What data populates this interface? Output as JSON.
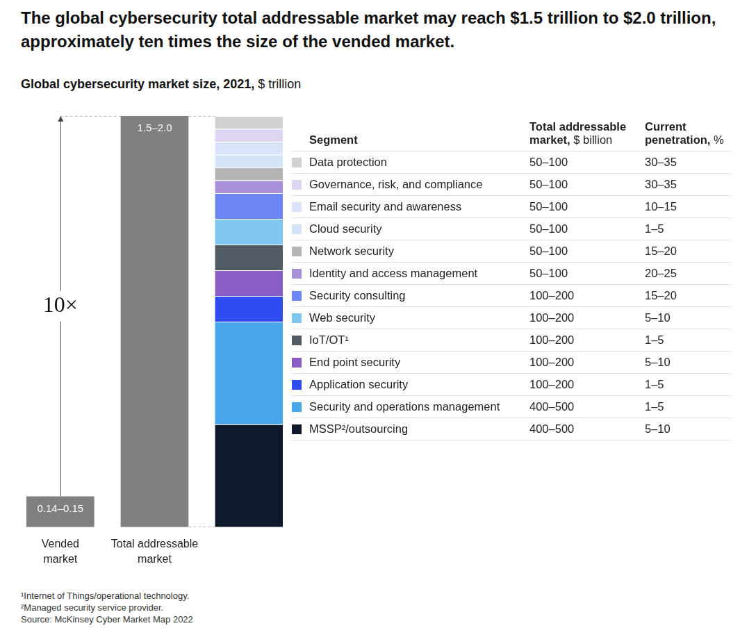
{
  "chart_data": {
    "type": "bar",
    "title": "The global cybersecurity total addressable market may reach $1.5 trillion to $2.0 trillion, approximately ten times the size of the vended market.",
    "subtitle": "Global cybersecurity market size, 2021,",
    "unit": "$ trillion",
    "categories": [
      "Vended market",
      "Total addressable market",
      null
    ],
    "values": [
      0.15,
      2.0,
      null
    ],
    "value_labels": [
      "0.14–0.15",
      "1.5–2.0",
      null
    ],
    "color": "#808080",
    "ylim": [
      0,
      2.0
    ],
    "y2lim": [
      0,
      1600
    ],
    "stacked": true,
    "data_labels": true,
    "grid": false,
    "tick_labels": "x",
    "annotations": [
      "10×"
    ],
    "table_headers": [
      {
        "text": "Segment"
      },
      {
        "text": "Total addressable market,",
        "unit": "$ billion"
      },
      {
        "text": "Current penetration,",
        "unit": "%"
      }
    ],
    "series": [
      {
        "name": "Data protection",
        "color": "#d1d1d1",
        "axis": "y2",
        "values": [
          null,
          null,
          50
        ],
        "total_addressable_market": "50–100",
        "current_penetration": "30–35"
      },
      {
        "name": "Governance, risk, and compliance",
        "color": "#ddd5f1",
        "axis": "y2",
        "values": [
          null,
          null,
          50
        ],
        "total_addressable_market": "50–100",
        "current_penetration": "30–35"
      },
      {
        "name": "Email security and awareness",
        "color": "#d9e4fb",
        "axis": "y2",
        "values": [
          null,
          null,
          50
        ],
        "total_addressable_market": "50–100",
        "current_penetration": "10–15"
      },
      {
        "name": "Cloud security",
        "color": "#d5e3f7",
        "axis": "y2",
        "values": [
          null,
          null,
          50
        ],
        "total_addressable_market": "50–100",
        "current_penetration": "1–5"
      },
      {
        "name": "Network security",
        "color": "#b4b4b4",
        "axis": "y2",
        "values": [
          null,
          null,
          50
        ],
        "total_addressable_market": "50–100",
        "current_penetration": "15–20"
      },
      {
        "name": "Identity and access management",
        "color": "#aa8fd9",
        "axis": "y2",
        "values": [
          null,
          null,
          50
        ],
        "total_addressable_market": "50–100",
        "current_penetration": "20–25"
      },
      {
        "name": "Security consulting",
        "color": "#6d86f5",
        "axis": "y2",
        "values": [
          null,
          null,
          100
        ],
        "total_addressable_market": "100–200",
        "current_penetration": "15–20"
      },
      {
        "name": "Web security",
        "color": "#7fc7f1",
        "axis": "y2",
        "values": [
          null,
          null,
          100
        ],
        "total_addressable_market": "100–200",
        "current_penetration": "5–10"
      },
      {
        "name": "IoT/OT¹",
        "color": "#535b64",
        "axis": "y2",
        "values": [
          null,
          null,
          100
        ],
        "total_addressable_market": "100–200",
        "current_penetration": "1–5"
      },
      {
        "name": "End point security",
        "color": "#895cc6",
        "axis": "y2",
        "values": [
          null,
          null,
          100
        ],
        "total_addressable_market": "100–200",
        "current_penetration": "5–10"
      },
      {
        "name": "Application security",
        "color": "#2f4cf0",
        "axis": "y2",
        "values": [
          null,
          null,
          100
        ],
        "total_addressable_market": "100–200",
        "current_penetration": "1–5"
      },
      {
        "name": "Security and operations management",
        "color": "#47a5ea",
        "axis": "y2",
        "values": [
          null,
          null,
          400
        ],
        "total_addressable_market": "400–500",
        "current_penetration": "1–5"
      },
      {
        "name": "MSSP²/outsourcing",
        "color": "#0e1a2b",
        "axis": "y2",
        "values": [
          null,
          null,
          400
        ],
        "total_addressable_market": "400–500",
        "current_penetration": "5–10"
      }
    ],
    "footnotes": [
      "¹Internet of Things/operational technology.",
      "²Managed security service provider."
    ],
    "source": "Source: McKinsey Cyber Market Map 2022"
  }
}
